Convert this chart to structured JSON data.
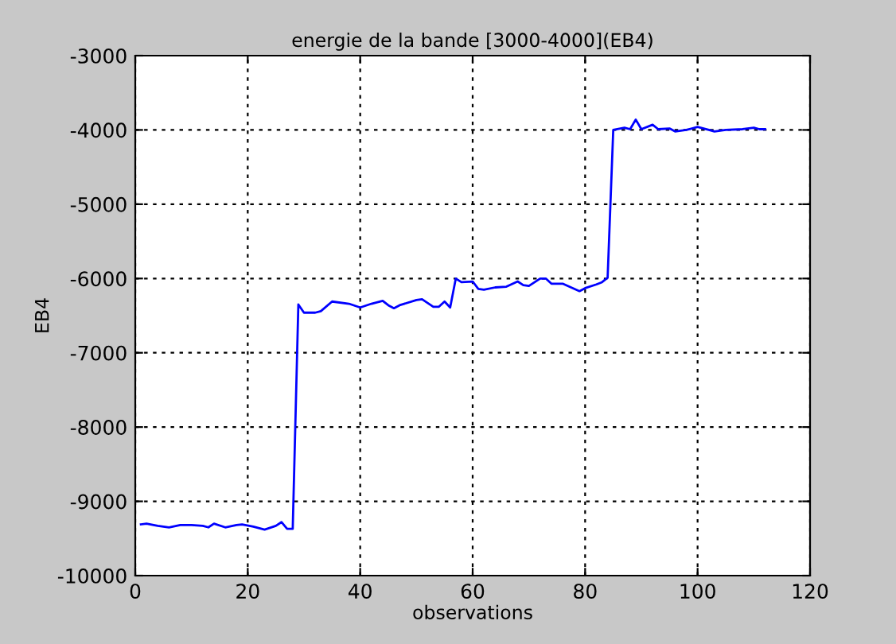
{
  "chart_data": {
    "type": "line",
    "title": "energie de la bande [3000-4000](EB4)",
    "xlabel": "observations",
    "ylabel": "EB4",
    "x": [
      1,
      2,
      4,
      6,
      8,
      10,
      12,
      13,
      14,
      16,
      18,
      19,
      21,
      23,
      25,
      26,
      27,
      28,
      29,
      30,
      32,
      33,
      35,
      38,
      40,
      42,
      44,
      45,
      46,
      47,
      50,
      51,
      53,
      54,
      55,
      56,
      57,
      58,
      60,
      61,
      62,
      64,
      66,
      68,
      69,
      70,
      72,
      73,
      74,
      76,
      79,
      80,
      82,
      83,
      84,
      85,
      87,
      88,
      89,
      90,
      92,
      93,
      95,
      96,
      98,
      99,
      100,
      102,
      103,
      105,
      108,
      110,
      111,
      112
    ],
    "series": [
      {
        "color": "#0000ff",
        "values": [
          -9310,
          -9300,
          -9330,
          -9350,
          -9320,
          -9320,
          -9330,
          -9350,
          -9300,
          -9350,
          -9320,
          -9310,
          -9340,
          -9380,
          -9330,
          -9280,
          -9370,
          -9370,
          -6350,
          -6460,
          -6460,
          -6440,
          -6310,
          -6340,
          -6390,
          -6340,
          -6300,
          -6360,
          -6400,
          -6360,
          -6290,
          -6280,
          -6380,
          -6380,
          -6310,
          -6390,
          -6000,
          -6050,
          -6040,
          -6140,
          -6150,
          -6120,
          -6110,
          -6040,
          -6090,
          -6100,
          -6000,
          -6000,
          -6070,
          -6070,
          -6170,
          -6130,
          -6080,
          -6050,
          -5990,
          -4000,
          -3970,
          -3990,
          -3860,
          -3990,
          -3930,
          -3990,
          -3980,
          -4020,
          -4000,
          -3980,
          -3960,
          -4000,
          -4020,
          -4000,
          -3990,
          -3970,
          -3990,
          -3990
        ]
      }
    ],
    "xlim": [
      0,
      120
    ],
    "xticks": [
      0,
      20,
      40,
      60,
      80,
      100,
      120
    ],
    "ylim": [
      -10000,
      -3000
    ],
    "yticks": [
      -10000,
      -9000,
      -8000,
      -7000,
      -6000,
      -5000,
      -4000,
      -3000
    ],
    "grid": true,
    "line_style": "solid",
    "marker": "none"
  }
}
